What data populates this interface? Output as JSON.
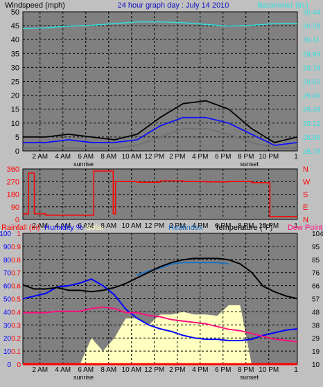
{
  "colors": {
    "background": "#c0c0c0",
    "plot_area": "#808080",
    "grid": "#000000",
    "wind_label": "#000000",
    "title": "#1010c0",
    "barometer": "#30e0e0",
    "wind_speed": "#000000",
    "wind_avg": "#1010ff",
    "wind_low": "#707070",
    "direction": "#ff0000",
    "rainfall": "#ff0000",
    "humidity": "#0000ff",
    "solar": "#ffffc0",
    "heatindex": "#2070c0",
    "temperature": "#000000",
    "dewpoint": "#ff1080",
    "direction_letters": "#ff0000"
  },
  "chart_data": [
    {
      "type": "line",
      "title": "24 hour graph day : July 14 2010",
      "left_axis_label": "Windspeed (mph)",
      "right_axis_label": "Barometer (in.)",
      "x_ticks": [
        "2 AM",
        "4 AM",
        "6 AM",
        "8 AM",
        "10 AM",
        "12 PM",
        "2 PM",
        "4 PM",
        "6 PM",
        "8 PM",
        "10 PM",
        "1"
      ],
      "x_annotations": [
        "sunrise",
        "sunset"
      ],
      "ylim_left": [
        0,
        50
      ],
      "yticks_left": [
        "50",
        "45",
        "40",
        "35",
        "30",
        "25",
        "20",
        "15",
        "10",
        "5",
        "0"
      ],
      "ylim_right": [
        28.79,
        30.44
      ],
      "yticks_right": [
        "30.44",
        "30.28",
        "30.11",
        "29.95",
        "29.78",
        "29.62",
        "29.45",
        "29.29",
        "29.12",
        "28.96",
        "28.79"
      ],
      "x": [
        0,
        2,
        4,
        6,
        8,
        10,
        12,
        14,
        16,
        18,
        20,
        22,
        24
      ],
      "series": [
        {
          "name": "Barometer",
          "axis": "right",
          "values": [
            30.24,
            30.25,
            30.27,
            30.28,
            30.3,
            30.32,
            30.32,
            30.31,
            30.29,
            30.27,
            30.28,
            30.3,
            30.3
          ]
        },
        {
          "name": "Windspeed",
          "axis": "left",
          "values": [
            5,
            5,
            6,
            5,
            4,
            6,
            12,
            17,
            18,
            15,
            8,
            3,
            5
          ]
        },
        {
          "name": "Average wind",
          "axis": "left",
          "values": [
            3,
            3,
            4,
            3,
            3,
            4,
            9,
            12,
            12,
            10,
            6,
            2,
            3
          ]
        },
        {
          "name": "Low wind",
          "axis": "left",
          "values": [
            1,
            1,
            1,
            1,
            1,
            2,
            5,
            8,
            8,
            6,
            3,
            1,
            1
          ]
        }
      ]
    },
    {
      "type": "line",
      "ylim": [
        0,
        360
      ],
      "yticks": [
        "360",
        "270",
        "180",
        "90",
        "0"
      ],
      "right_labels": [
        "N",
        "W",
        "S",
        "E",
        "N"
      ],
      "x_ticks": [
        "2 AM",
        "4 AM",
        "6 AM",
        "8 AM",
        "10 AM",
        "12 PM",
        "2 PM",
        "4 PM",
        "6 PM",
        "8 PM",
        "10 PM",
        "1"
      ],
      "x": [
        0,
        0.5,
        1,
        2,
        4,
        5.8,
        6.2,
        7.5,
        7.9,
        8.1,
        10,
        12,
        14,
        16,
        18,
        20,
        21.4,
        21.6,
        24
      ],
      "series": [
        {
          "name": "Wind direction",
          "values": [
            40,
            330,
            40,
            30,
            30,
            30,
            345,
            345,
            40,
            270,
            265,
            275,
            270,
            268,
            270,
            262,
            262,
            20,
            20
          ]
        }
      ]
    },
    {
      "type": "line",
      "legend": [
        "Rainfall (in)",
        "Humidity %",
        "Solar",
        "Heatindex",
        "Temperature (°F)",
        "Dew Point"
      ],
      "yticks_left_humidity": [
        "100",
        "90",
        "80",
        "70",
        "60",
        "50",
        "40",
        "30",
        "20",
        "10",
        "0"
      ],
      "yticks_left_rain": [
        "1",
        "0.9",
        "0.8",
        "0.7",
        "0.6",
        "0.5",
        "0.4",
        "0.3",
        "0.2",
        "0.1",
        "0"
      ],
      "ylim_right": [
        10,
        104
      ],
      "yticks_right": [
        "104",
        "95",
        "85",
        "76",
        "66",
        "57",
        "48",
        "38",
        "29",
        "19",
        "10"
      ],
      "x_ticks": [
        "2 AM",
        "4 AM",
        "6 AM",
        "8 AM",
        "10 AM",
        "12 PM",
        "2 PM",
        "4 PM",
        "6 PM",
        "8 PM",
        "10 PM",
        "1"
      ],
      "x_annotations": [
        "sunrise",
        "sunset"
      ],
      "x": [
        0,
        1,
        2,
        3,
        4,
        5,
        6,
        7,
        8,
        9,
        10,
        11,
        12,
        13,
        14,
        15,
        16,
        17,
        18,
        19,
        20,
        21,
        22,
        23,
        24
      ],
      "series": [
        {
          "name": "Temperature",
          "axis": "right",
          "values": [
            67,
            64,
            64,
            65,
            63,
            63,
            62,
            63,
            65,
            68,
            72,
            76,
            80,
            83,
            85,
            86,
            86,
            86,
            85,
            82,
            76,
            66,
            62,
            59,
            57
          ]
        },
        {
          "name": "Heatindex",
          "axis": "right",
          "values": [
            null,
            null,
            null,
            null,
            null,
            null,
            null,
            null,
            null,
            null,
            74,
            77,
            79,
            82,
            83,
            83,
            83,
            83,
            82,
            null,
            null,
            null,
            null,
            null,
            null
          ]
        },
        {
          "name": "Dew Point",
          "axis": "right",
          "values": [
            47,
            47,
            47,
            48,
            48,
            48,
            50,
            51,
            50,
            47,
            47,
            45,
            44,
            42,
            41,
            40,
            39,
            37,
            35,
            34,
            32,
            30,
            28,
            27,
            26
          ]
        },
        {
          "name": "Humidity",
          "axis": "left",
          "values": [
            50,
            52,
            54,
            59,
            60,
            62,
            65,
            60,
            53,
            42,
            35,
            30,
            27,
            25,
            22,
            20,
            19,
            19,
            18,
            18,
            19,
            22,
            24,
            26,
            27
          ]
        },
        {
          "name": "Solar",
          "axis": "left",
          "values": [
            0,
            0,
            0,
            0,
            0,
            0,
            20,
            10,
            20,
            35,
            35,
            30,
            38,
            38,
            40,
            38,
            38,
            37,
            45,
            45,
            0,
            0,
            0,
            0,
            0
          ]
        },
        {
          "name": "Rainfall",
          "axis": "left",
          "values": [
            0,
            0,
            0,
            0,
            0,
            0,
            0,
            0,
            0,
            0,
            0,
            0,
            0,
            0,
            0,
            0,
            0,
            0,
            0,
            0,
            0,
            0,
            0,
            0,
            0
          ]
        }
      ]
    }
  ]
}
